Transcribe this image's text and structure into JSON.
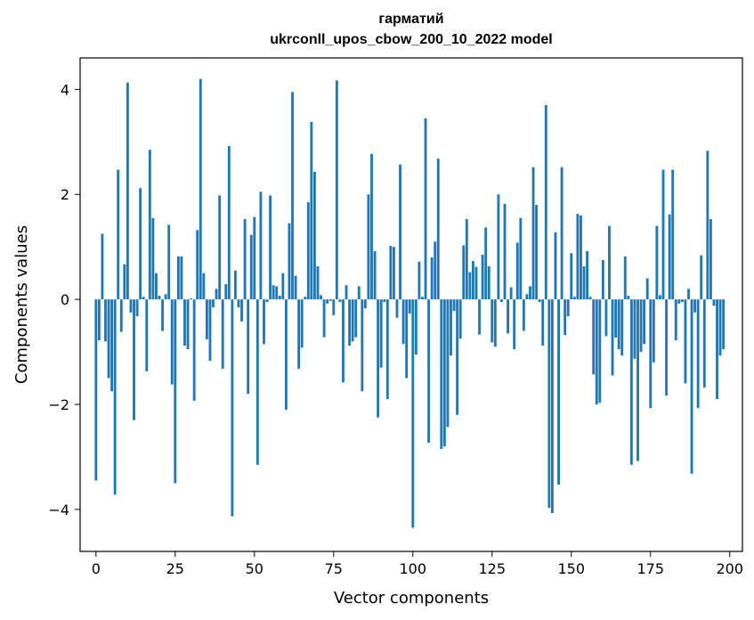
{
  "chart_data": {
    "type": "bar",
    "title_lines": [
      "гарматий",
      "ukrconll_upos_cbow_200_10_2022 model"
    ],
    "xlabel": "Vector components",
    "ylabel": "Components values",
    "xlim": [
      -5,
      204
    ],
    "ylim": [
      -4.8,
      4.6
    ],
    "x_ticks": [
      0,
      25,
      50,
      75,
      100,
      125,
      150,
      175,
      200
    ],
    "x_tick_labels": [
      "0",
      "25",
      "50",
      "75",
      "100",
      "125",
      "150",
      "175",
      "200"
    ],
    "y_ticks": [
      -4,
      -2,
      0,
      2,
      4
    ],
    "y_tick_labels": [
      "−4",
      "−2",
      "0",
      "2",
      "4"
    ],
    "grid": false,
    "bar_color": "#1f77b4",
    "values": [
      -3.45,
      -0.78,
      1.25,
      -0.8,
      -1.5,
      -1.75,
      -3.72,
      2.47,
      -0.62,
      0.67,
      4.13,
      -0.25,
      -2.3,
      -0.32,
      2.12,
      0.05,
      -1.37,
      2.85,
      1.55,
      0.5,
      0.07,
      -0.6,
      0.1,
      1.42,
      -1.62,
      -3.5,
      0.82,
      0.82,
      -0.88,
      -0.95,
      0.02,
      -1.93,
      1.32,
      4.2,
      0.5,
      -0.76,
      -1.17,
      -0.15,
      0.2,
      1.98,
      -1.32,
      0.29,
      2.92,
      -4.13,
      0.55,
      -0.15,
      -0.42,
      1.53,
      -1.8,
      1.23,
      1.57,
      -3.15,
      2.05,
      -0.85,
      -0.05,
      1.98,
      0.27,
      0.25,
      0.07,
      0.5,
      -2.1,
      1.45,
      3.95,
      0.45,
      -1.32,
      -0.92,
      0.05,
      1.85,
      3.38,
      2.43,
      0.63,
      0.08,
      -0.72,
      -0.08,
      -0.03,
      -0.3,
      4.17,
      -0.05,
      -1.58,
      0.27,
      -0.88,
      -0.8,
      -0.72,
      0.25,
      -1.75,
      -0.17,
      2.0,
      2.77,
      0.92,
      -2.25,
      -1.3,
      -0.05,
      -1.9,
      1.02,
      1.0,
      -0.35,
      2.57,
      -0.85,
      -1.5,
      -0.27,
      -4.35,
      -1.05,
      0.72,
      0.05,
      3.45,
      -2.73,
      0.8,
      1.1,
      2.68,
      -2.85,
      -2.8,
      -2.43,
      -1.07,
      -0.22,
      -2.2,
      -0.75,
      1.03,
      1.53,
      0.52,
      0.73,
      0.62,
      -0.67,
      0.85,
      1.37,
      0.63,
      -0.82,
      -0.9,
      2.0,
      -0.05,
      1.82,
      -0.65,
      0.23,
      -0.95,
      1.08,
      1.55,
      -0.6,
      0.1,
      0.25,
      2.52,
      1.8,
      -0.05,
      -0.88,
      3.7,
      -3.97,
      -4.07,
      1.28,
      -3.53,
      2.52,
      -0.68,
      -0.32,
      0.88,
      0.05,
      1.63,
      1.6,
      0.63,
      0.92,
      0.05,
      -1.43,
      -2.0,
      -1.97,
      0.75,
      -0.7,
      1.4,
      -1.45,
      -0.73,
      -0.95,
      -1.07,
      0.82,
      0.07,
      -3.15,
      -1.13,
      -3.08,
      -1.0,
      -0.85,
      0.4,
      -2.07,
      -1.2,
      1.4,
      0.08,
      2.47,
      -1.83,
      1.62,
      2.47,
      -0.78,
      -0.08,
      -0.05,
      -1.6,
      0.2,
      -3.32,
      -0.25,
      -2.07,
      0.84,
      -1.68,
      2.83,
      1.53,
      -0.12,
      -1.9,
      -1.07,
      -0.95
    ]
  }
}
